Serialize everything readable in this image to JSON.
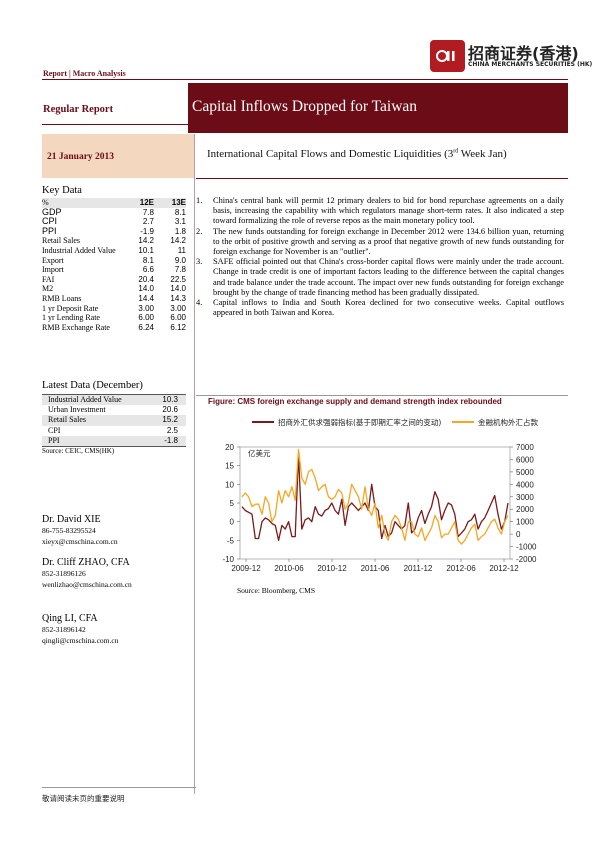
{
  "header": {
    "logo_mark": "",
    "logo_cn": "招商证券(香港)",
    "logo_en": "CHINA MERCHANTS SECURITIES (HK)",
    "report_type": "Report | Macro Analysis",
    "regular_report": "Regular Report",
    "title": "Capital Inflows Dropped for Taiwan",
    "date": "21 January 2013",
    "subtitle_pre": "International Capital Flows and Domestic Liquidities (3",
    "subtitle_sup": "rd",
    "subtitle_post": " Week Jan)"
  },
  "key_data": {
    "title": "Key Data",
    "col_label": "%",
    "col_12e": "12E",
    "col_13e": "13E",
    "rows": [
      {
        "label": "GDP",
        "v12": "7.8",
        "v13": "8.1"
      },
      {
        "label": "CPI",
        "v12": "2.7",
        "v13": "3.1"
      },
      {
        "label": "PPI",
        "v12": "-1.9",
        "v13": "1.8"
      },
      {
        "label": "Retail Sales",
        "v12": "14.2",
        "v13": "14.2"
      },
      {
        "label": "Industrial Added Value",
        "v12": "10.1",
        "v13": "11"
      },
      {
        "label": "Export",
        "v12": "8.1",
        "v13": "9.0"
      },
      {
        "label": "Import",
        "v12": "6.6",
        "v13": "7.8"
      },
      {
        "label": "FAI",
        "v12": "20.4",
        "v13": "22.5"
      },
      {
        "label": "M2",
        "v12": "14.0",
        "v13": "14.0"
      },
      {
        "label": "RMB Loans",
        "v12": "14.4",
        "v13": "14.3"
      },
      {
        "label": "1 yr Deposit Rate",
        "v12": "3.00",
        "v13": "3.00"
      },
      {
        "label": "1 yr Lending Rate",
        "v12": "6.00",
        "v13": "6.00"
      },
      {
        "label": "RMB Exchange Rate",
        "v12": "6.24",
        "v13": "6.12"
      }
    ]
  },
  "latest_data": {
    "title": "Latest Data (December)",
    "rows": [
      {
        "label": "Industrial Added Value",
        "value": "10.3"
      },
      {
        "label": "Urban Investment",
        "value": "20.6"
      },
      {
        "label": "Retail Sales",
        "value": "15.2"
      },
      {
        "label": "CPI",
        "value": "2.5"
      },
      {
        "label": "PPI",
        "value": "-1.8"
      }
    ],
    "source": "Source: CEIC, CMS(HK)"
  },
  "analysts": [
    {
      "name": "Dr. David XIE",
      "phone": "86-755-83295524",
      "email": "xieyx@cmschina.com.cn"
    },
    {
      "name": "Dr. Cliff ZHAO, CFA",
      "phone": "852-31896126",
      "email": "wenlizhao@cmschina.com.cn"
    },
    {
      "name": "Qing LI, CFA",
      "phone": "852-31896142",
      "email": "qingli@cmschina.com.cn"
    }
  ],
  "points": [
    {
      "num": "1.",
      "text": "China's central bank will permit 12 primary dealers to bid for bond repurchase agreements on a daily basis, increasing the capability with which regulators manage short-term rates. It also indicated a step toward formalizing the role of reverse repos as the main monetary policy tool."
    },
    {
      "num": "2.",
      "text": "The new funds outstanding for foreign exchange in December 2012 were 134.6 billion yuan, returning to the orbit of positive growth and serving as a proof that negative growth of new funds outstanding for foreign exchange for November is an \"outlier\"."
    },
    {
      "num": "3.",
      "text": "SAFE official pointed out that China's cross-border capital flows were mainly under the trade account. Change in trade credit is one of important factors leading to the difference between the capital changes and trade balance under the trade account. The impact over new funds outstanding for foreign exchange brought by the change of trade financing method has been gradually dissipated."
    },
    {
      "num": "4.",
      "text": "Capital inflows to India and South Korea declined for two consecutive weeks. Capital outflows appeared in both Taiwan and Korea."
    }
  ],
  "figure": {
    "title": "Figure:  CMS foreign exchange supply and demand strength index rebounded",
    "source": "Source:  Bloomberg, CMS"
  },
  "chart_data": {
    "type": "line",
    "unit_label": "亿美元",
    "x_ticks": [
      "2009-12",
      "2010-06",
      "2010-12",
      "2011-06",
      "2011-12",
      "2012-06",
      "2012-12"
    ],
    "y_left_ticks": [
      "20",
      "15",
      "10",
      "5",
      "0",
      "-5",
      "-10"
    ],
    "y_right_ticks": [
      "7000",
      "6000",
      "5000",
      "4000",
      "3000",
      "2000",
      "1000",
      "0",
      "-1000",
      "-2000"
    ],
    "ylim_left": [
      -10,
      20
    ],
    "ylim_right": [
      -2000,
      7000
    ],
    "legend_position": "top",
    "series": [
      {
        "name": "招商外汇供求强弱指标(基于即期汇率之间的变动)",
        "axis": "left",
        "color": "#7a1a1a",
        "values": [
          4,
          3,
          2.5,
          2,
          -4.5,
          -4.5,
          0,
          1,
          0.5,
          -0.5,
          -1,
          -5,
          -1,
          -2,
          0,
          -4,
          -4,
          18,
          -2,
          0.5,
          1,
          0,
          4,
          2,
          1.5,
          3,
          3.5,
          5,
          3,
          2,
          6,
          -1,
          4,
          5,
          4,
          3,
          4,
          5,
          3,
          10,
          4,
          3,
          -4.5,
          -1,
          -4,
          -3,
          0,
          -1,
          -2,
          -1,
          5,
          -3,
          -2,
          1,
          3,
          -0.5,
          2,
          4,
          8,
          6,
          0.5,
          3,
          5,
          4.5,
          2,
          -4,
          -3,
          -2,
          0,
          0.5,
          2,
          -2,
          0,
          1,
          3,
          5,
          7,
          2,
          -2,
          0,
          5
        ]
      },
      {
        "name": "金融机构外汇占款",
        "axis": "right",
        "color": "#f5a623",
        "values": [
          3000,
          3300,
          3000,
          2200,
          2400,
          2400,
          1600,
          3000,
          2500,
          1000,
          1500,
          3500,
          2500,
          3500,
          3000,
          3800,
          2700,
          6800,
          4500,
          4000,
          5000,
          5200,
          4500,
          3500,
          3800,
          4000,
          3000,
          2800,
          3000,
          3600,
          3300,
          2000,
          2500,
          4000,
          3500,
          3000,
          2000,
          3800,
          2000,
          1500,
          2500,
          500,
          1500,
          0,
          -500,
          1000,
          1500,
          1200,
          500,
          -500,
          1000,
          1000,
          0,
          -200,
          500,
          -500,
          0,
          500,
          1500,
          1000,
          -300,
          0,
          0,
          500,
          1000,
          -500,
          -800,
          -500,
          0,
          500,
          800,
          -500,
          -200,
          0,
          500,
          1000,
          1200,
          500,
          0,
          1000,
          1500
        ]
      }
    ]
  },
  "footer": {
    "text": "敬请阅读末页的重要说明"
  }
}
